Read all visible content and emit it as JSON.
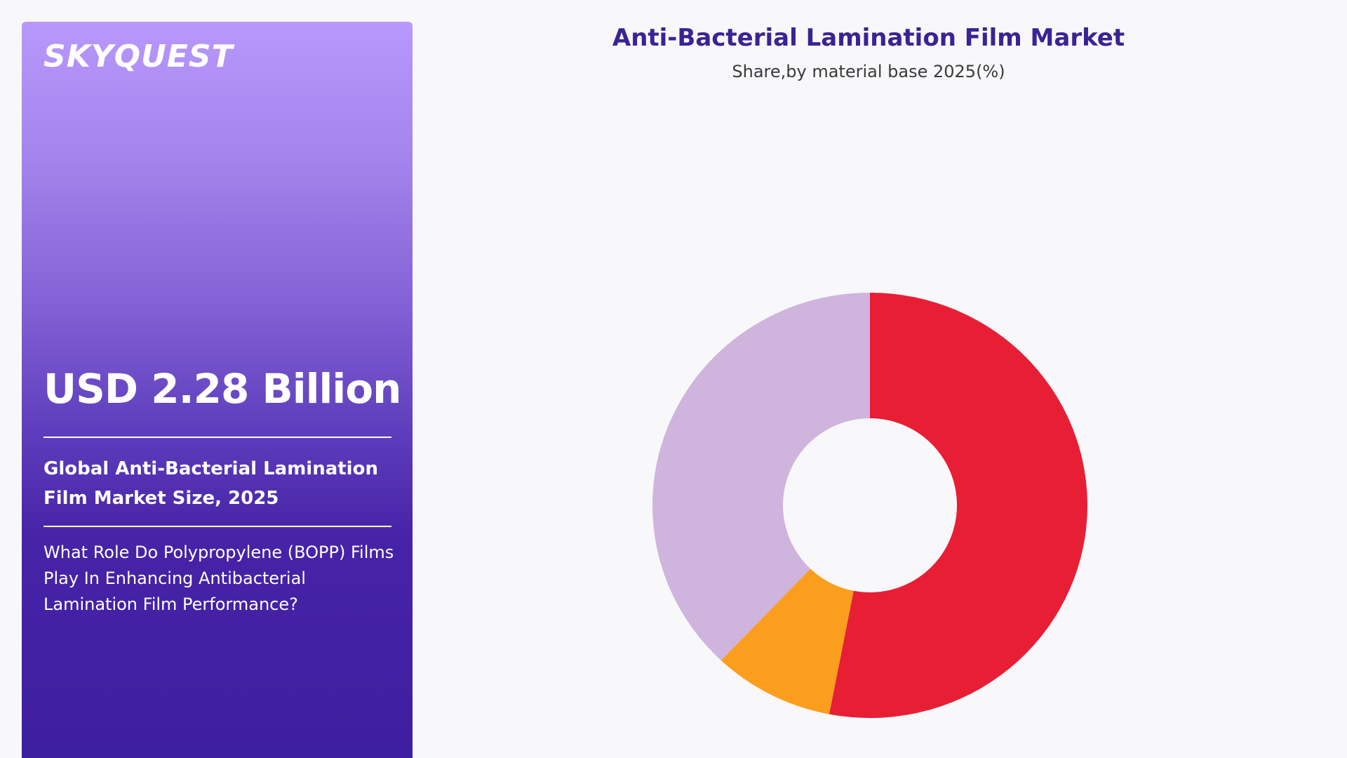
{
  "brand": {
    "logo_text": "SKYQUEST"
  },
  "side_panel": {
    "market_size": "USD 2.28 Billion",
    "size_label": "Global Anti-Bacterial Lamination Film Market Size, 2025",
    "question": "What Role Do Polypropylene (BOPP) Films Play In Enhancing Antibacterial Lamination Film Performance?"
  },
  "colors": {
    "panel_top": "#b898fc",
    "panel_bottom": "#3e1ea0",
    "title": "#3a2394",
    "background": "#f8f7fa"
  },
  "chart_data": {
    "type": "pie",
    "donut": true,
    "title": "Anti-Bacterial Lamination Film Market",
    "subtitle": "Share,by material base 2025(%)",
    "slices": [
      {
        "value": 53,
        "color": "#e81e35"
      },
      {
        "value": 9,
        "color": "#fb9e1e"
      },
      {
        "value": 38,
        "color": "#cfb4de"
      }
    ]
  }
}
